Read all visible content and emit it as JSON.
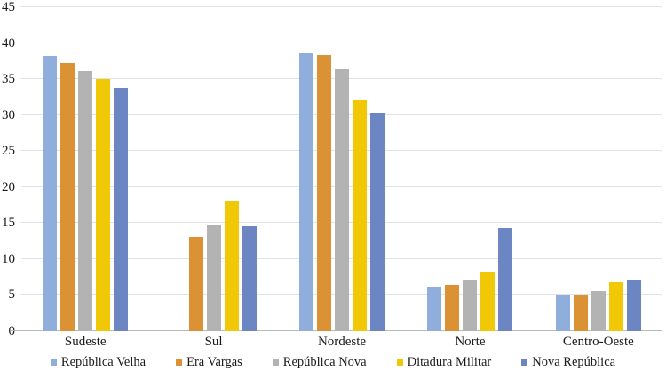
{
  "chart_data": {
    "type": "bar",
    "title": "",
    "xlabel": "",
    "ylabel": "",
    "categories": [
      "Sudeste",
      "Sul",
      "Nordeste",
      "Norte",
      "Centro-Oeste"
    ],
    "series": [
      {
        "name": "República Velha",
        "color": "#8FAEDC",
        "values": [
          38.2,
          0,
          38.6,
          6.2,
          5.0
        ]
      },
      {
        "name": "Era Vargas",
        "color": "#DB9234",
        "values": [
          37.2,
          13.1,
          38.4,
          6.4,
          5.0
        ]
      },
      {
        "name": "República Nova",
        "color": "#B3B3B3",
        "values": [
          36.1,
          14.8,
          36.4,
          7.2,
          5.5
        ]
      },
      {
        "name": "Ditadura Militar",
        "color": "#F0C806",
        "values": [
          35.0,
          18.0,
          32.1,
          8.2,
          6.8
        ]
      },
      {
        "name": "Nova República",
        "color": "#6C86C4",
        "values": [
          33.8,
          14.6,
          30.3,
          14.3,
          7.2
        ]
      }
    ],
    "y_axis": {
      "min": 0,
      "max": 45,
      "step": 5,
      "tick_labels": [
        "0",
        "5",
        "10",
        "15",
        "20",
        "25",
        "30",
        "35",
        "40",
        "45"
      ]
    },
    "grid": true,
    "gridline_color": "#e2e2e2",
    "axis_line_color": "#b9b9b9",
    "text_color": "#1a1a1a",
    "legend_position": "bottom"
  }
}
